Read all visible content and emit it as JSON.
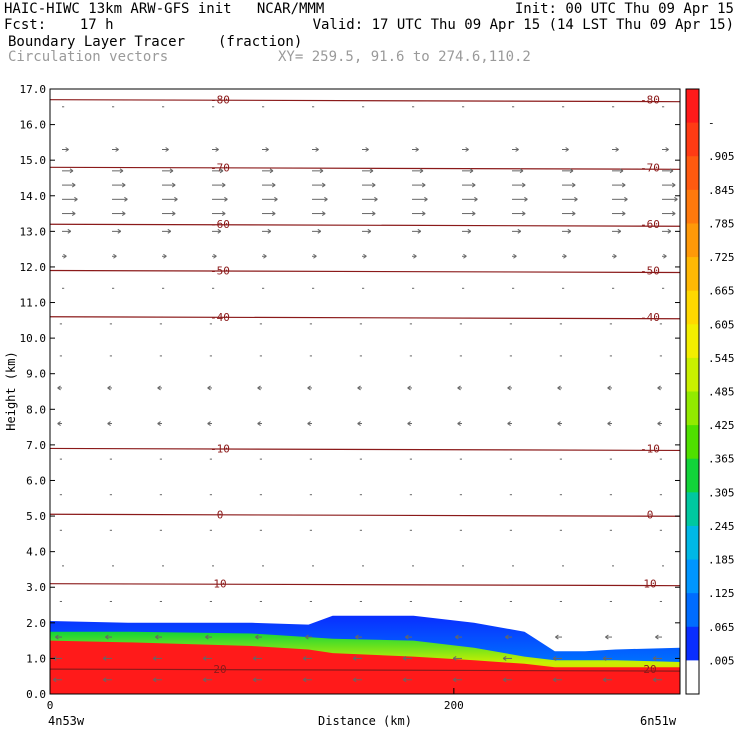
{
  "header": {
    "model": "HAIC-HIWC 13km ARW-GFS init   NCAR/MMM",
    "init": "Init: 00 UTC Thu 09 Apr 15",
    "fcst": "Fcst:    17 h",
    "valid": "Valid: 17 UTC Thu 09 Apr 15 (14 LST Thu 09 Apr 15)",
    "field": "Boundary Layer Tracer",
    "units": "(fraction)",
    "vectors": "Circulation vectors",
    "xy": "XY= 259.5, 91.6 to 274.6,110.2"
  },
  "chart_data": {
    "type": "area",
    "xlabel": "Distance (km)",
    "ylabel": "Height (km)",
    "xlim": [
      0,
      312
    ],
    "ylim": [
      0,
      17
    ],
    "x_ticks": [
      "0",
      "200"
    ],
    "x_tick_values": [
      0,
      200
    ],
    "x_end_labels": [
      "4n53w",
      "6n51w"
    ],
    "y_ticks": [
      "0.0",
      "1.0",
      "2.0",
      "3.0",
      "4.0",
      "5.0",
      "6.0",
      "7.0",
      "8.0",
      "9.0",
      "10.0",
      "11.0",
      "12.0",
      "13.0",
      "14.0",
      "15.0",
      "16.0",
      "17.0"
    ],
    "colorbar": {
      "labels": [
        "-",
        ".905",
        ".845",
        ".785",
        ".725",
        ".665",
        ".605",
        ".545",
        ".485",
        ".425",
        ".365",
        ".305",
        ".245",
        ".185",
        ".125",
        ".065",
        ".005"
      ],
      "colors": [
        "#ff1a1a",
        "#ff3b14",
        "#ff5a10",
        "#ff790c",
        "#ff9908",
        "#ffb804",
        "#ffd800",
        "#f3ee00",
        "#c9f000",
        "#92ea00",
        "#4fe000",
        "#12d43a",
        "#00c8a0",
        "#00b8e6",
        "#0096ff",
        "#006cff",
        "#0a2eff",
        "#ffffff"
      ]
    },
    "tracer_top_km": {
      "x": [
        0,
        40,
        100,
        128,
        140,
        180,
        210,
        235,
        250,
        265,
        280,
        312
      ],
      "red": [
        1.5,
        1.45,
        1.35,
        1.25,
        1.15,
        1.05,
        0.95,
        0.85,
        0.75,
        0.75,
        0.75,
        0.75
      ],
      "green": [
        1.75,
        1.75,
        1.7,
        1.6,
        1.55,
        1.5,
        1.3,
        1.05,
        0.95,
        0.95,
        0.95,
        0.9
      ],
      "blue": [
        2.05,
        2.0,
        2.0,
        1.95,
        2.2,
        2.2,
        2.0,
        1.75,
        1.2,
        1.2,
        1.25,
        1.3
      ]
    },
    "temperature_contours": [
      {
        "label": "-80",
        "height_km": 16.7
      },
      {
        "label": "-70",
        "height_km": 14.8
      },
      {
        "label": "-60",
        "height_km": 13.2
      },
      {
        "label": "-50",
        "height_km": 11.9
      },
      {
        "label": "-40",
        "height_km": 10.6
      },
      {
        "label": "-10",
        "height_km": 6.9
      },
      {
        "label": "0",
        "height_km": 5.05
      },
      {
        "label": "10",
        "height_km": 3.1
      },
      {
        "label": "20",
        "height_km": 0.7
      }
    ],
    "wind_layers": [
      {
        "height_km": 16.5,
        "u": 1
      },
      {
        "height_km": 15.3,
        "u": 3
      },
      {
        "height_km": 14.7,
        "u": 5
      },
      {
        "height_km": 14.3,
        "u": 6
      },
      {
        "height_km": 13.9,
        "u": 7
      },
      {
        "height_km": 13.5,
        "u": 6
      },
      {
        "height_km": 13.0,
        "u": 4
      },
      {
        "height_km": 12.3,
        "u": 2
      },
      {
        "height_km": 11.4,
        "u": 1
      },
      {
        "height_km": 10.4,
        "u": -1
      },
      {
        "height_km": 9.5,
        "u": -1
      },
      {
        "height_km": 8.6,
        "u": -2
      },
      {
        "height_km": 7.6,
        "u": -2
      },
      {
        "height_km": 6.6,
        "u": -1
      },
      {
        "height_km": 5.6,
        "u": -1
      },
      {
        "height_km": 4.6,
        "u": -1
      },
      {
        "height_km": 3.6,
        "u": 0
      },
      {
        "height_km": 2.6,
        "u": -1
      },
      {
        "height_km": 1.6,
        "u": -3
      },
      {
        "height_km": 1.0,
        "u": -4
      },
      {
        "height_km": 0.4,
        "u": -4
      }
    ]
  }
}
